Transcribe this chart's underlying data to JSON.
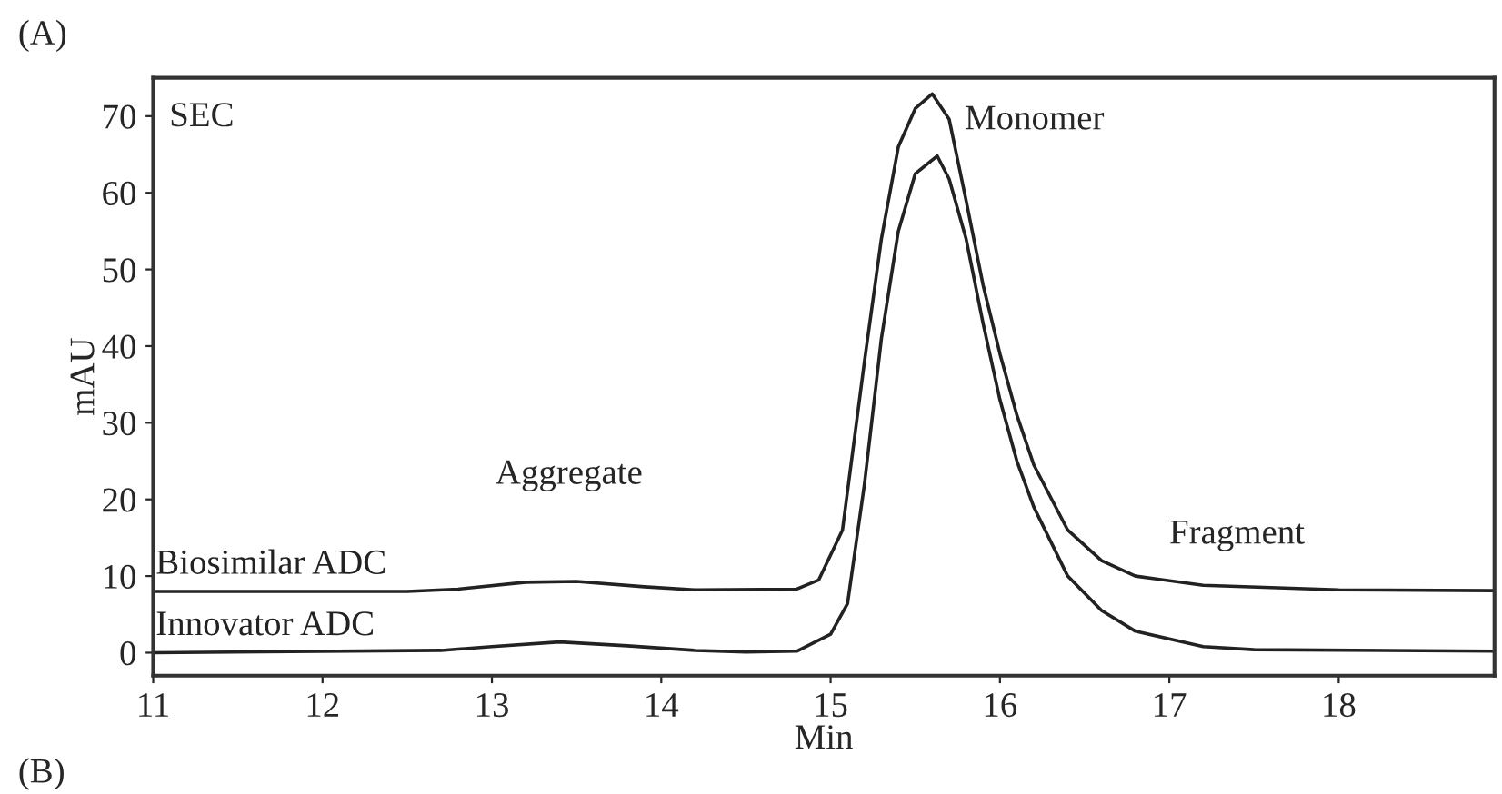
{
  "chart_data": {
    "type": "line",
    "title": "(A)",
    "xlabel": "Min",
    "ylabel": "mAU",
    "xlim": [
      11,
      18.92
    ],
    "xticks": [
      11,
      12,
      13,
      14,
      15,
      16,
      17,
      18
    ],
    "ylim": [
      -3,
      75
    ],
    "yticks": [
      0,
      10,
      20,
      30,
      40,
      50,
      60,
      70
    ],
    "grid": false,
    "legend": false,
    "marker": "none",
    "line_style": "solid",
    "series": [
      {
        "name": "Biosimilar ADC",
        "color": "#222222",
        "x": [
          11,
          12.5,
          12.8,
          13.2,
          13.5,
          13.9,
          14.2,
          14.8,
          14.93,
          15.07,
          15.2,
          15.3,
          15.4,
          15.5,
          15.6,
          15.7,
          15.8,
          15.9,
          16.0,
          16.1,
          16.2,
          16.4,
          16.6,
          16.8,
          17.2,
          18.0,
          18.92
        ],
        "values": [
          8,
          8,
          8.3,
          9.2,
          9.3,
          8.6,
          8.2,
          8.3,
          9.5,
          16,
          38,
          54,
          66,
          71,
          72.9,
          69.6,
          59,
          48,
          39,
          31,
          24.5,
          16,
          12,
          10,
          8.8,
          8.2,
          8.1
        ]
      },
      {
        "name": "Innovator ADC",
        "color": "#222222",
        "x": [
          11,
          12.7,
          13.0,
          13.4,
          13.8,
          14.2,
          14.5,
          14.8,
          15.0,
          15.1,
          15.2,
          15.3,
          15.4,
          15.5,
          15.63,
          15.7,
          15.8,
          15.9,
          16.0,
          16.1,
          16.2,
          16.4,
          16.6,
          16.8,
          17.2,
          17.5,
          18.92
        ],
        "values": [
          0,
          0.3,
          0.8,
          1.4,
          0.9,
          0.3,
          0.1,
          0.2,
          2.4,
          6.4,
          22,
          41,
          55,
          62.5,
          64.8,
          61.8,
          54,
          43,
          33,
          25,
          19,
          10,
          5.5,
          2.8,
          0.8,
          0.4,
          0.2
        ]
      }
    ],
    "annotations": [
      "SEC",
      "Monomer",
      "Aggregate",
      "Fragment",
      "(B)"
    ]
  }
}
